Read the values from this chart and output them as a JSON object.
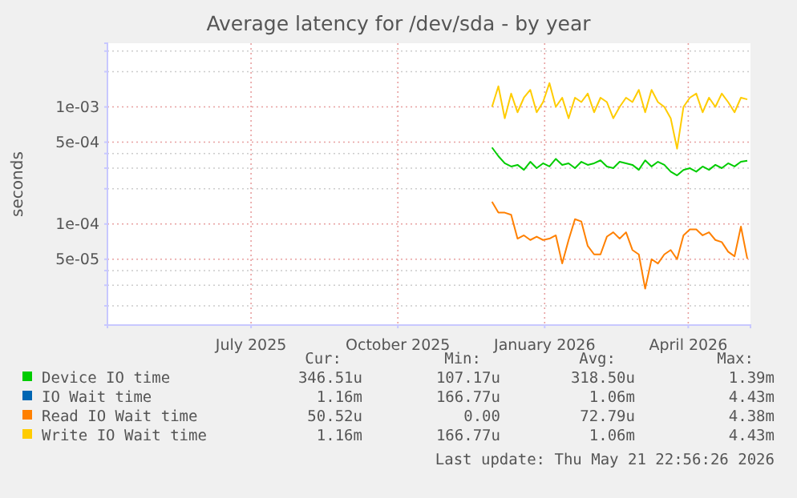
{
  "chart_data": {
    "type": "line",
    "title": "Average latency for /dev/sda - by year",
    "ylabel": "seconds",
    "log": "y",
    "grid": true,
    "legend": "bottom",
    "marker": "none",
    "line_style": "solid",
    "xlim": [
      "2025-04-17",
      "2026-05-25"
    ],
    "xticks": [
      {
        "value": "2025-07-16",
        "label": "July 2025"
      },
      {
        "value": "2025-10-16",
        "label": "October 2025"
      },
      {
        "value": "2026-01-16",
        "label": "January 2026"
      },
      {
        "value": "2026-04-16",
        "label": "April 2026"
      }
    ],
    "ylim": [
      1.37e-05,
      0.0035
    ],
    "yticks": [
      {
        "value": 2e-05,
        "label": null
      },
      {
        "value": 3e-05,
        "label": null
      },
      {
        "value": 4e-05,
        "label": null
      },
      {
        "value": 5e-05,
        "label": "5e-05"
      },
      {
        "value": 0.0001,
        "label": "1e-04"
      },
      {
        "value": 0.0002,
        "label": null
      },
      {
        "value": 0.0003,
        "label": null
      },
      {
        "value": 0.0004,
        "label": null
      },
      {
        "value": 0.0005,
        "label": "5e-04"
      },
      {
        "value": 0.001,
        "label": "1e-03"
      },
      {
        "value": 0.002,
        "label": null
      },
      {
        "value": 0.003,
        "label": null
      }
    ],
    "x": [
      "2025-12-14",
      "2025-12-18",
      "2025-12-22",
      "2025-12-26",
      "2025-12-30",
      "2026-01-03",
      "2026-01-07",
      "2026-01-11",
      "2026-01-15",
      "2026-01-19",
      "2026-01-23",
      "2026-01-27",
      "2026-01-31",
      "2026-02-04",
      "2026-02-08",
      "2026-02-12",
      "2026-02-16",
      "2026-02-20",
      "2026-02-24",
      "2026-02-28",
      "2026-03-04",
      "2026-03-08",
      "2026-03-12",
      "2026-03-16",
      "2026-03-20",
      "2026-03-24",
      "2026-03-28",
      "2026-04-01",
      "2026-04-05",
      "2026-04-09",
      "2026-04-13",
      "2026-04-17",
      "2026-04-21",
      "2026-04-25",
      "2026-04-29",
      "2026-05-03",
      "2026-05-07",
      "2026-05-11",
      "2026-05-15",
      "2026-05-19",
      "2026-05-23"
    ],
    "series": [
      {
        "name": "Device IO time",
        "color": "#00cc00",
        "values": [
          0.00045,
          0.00038,
          0.00033,
          0.00031,
          0.00032,
          0.00029,
          0.00034,
          0.0003,
          0.00033,
          0.00031,
          0.00036,
          0.00032,
          0.00033,
          0.0003,
          0.00034,
          0.00032,
          0.00033,
          0.00035,
          0.00031,
          0.0003,
          0.00034,
          0.00033,
          0.00032,
          0.00029,
          0.00035,
          0.00031,
          0.00034,
          0.00032,
          0.00028,
          0.00026,
          0.00029,
          0.0003,
          0.00028,
          0.00031,
          0.00029,
          0.00032,
          0.0003,
          0.00033,
          0.00031,
          0.00034,
          0.000347
        ]
      },
      {
        "name": "IO Wait time",
        "color": "#0066b3",
        "values": [
          null,
          null,
          null,
          null,
          null,
          null,
          null,
          null,
          null,
          null,
          null,
          null,
          null,
          null,
          null,
          null,
          null,
          null,
          null,
          null,
          null,
          null,
          null,
          null,
          null,
          null,
          null,
          null,
          null,
          null,
          null,
          null,
          null,
          null,
          null,
          null,
          null,
          null,
          null,
          null,
          null
        ]
      },
      {
        "name": "Read IO Wait time",
        "color": "#ff8000",
        "values": [
          0.000155,
          0.000125,
          0.000125,
          0.00012,
          7.5e-05,
          8e-05,
          7.3e-05,
          7.8e-05,
          7.3e-05,
          7.5e-05,
          8e-05,
          4.6e-05,
          7.3e-05,
          0.00011,
          0.000105,
          6.5e-05,
          5.5e-05,
          5.5e-05,
          7.8e-05,
          8.5e-05,
          7.5e-05,
          8.5e-05,
          6e-05,
          5.5e-05,
          2.8e-05,
          5e-05,
          4.6e-05,
          5.5e-05,
          6e-05,
          5e-05,
          8e-05,
          9e-05,
          9e-05,
          8e-05,
          8.5e-05,
          7.3e-05,
          7e-05,
          5.8e-05,
          5.3e-05,
          9.5e-05,
          5.05e-05
        ]
      },
      {
        "name": "Write IO Wait time",
        "color": "#ffcc00",
        "values": [
          0.001,
          0.0015,
          0.0008,
          0.0013,
          0.0009,
          0.0012,
          0.0014,
          0.0009,
          0.0011,
          0.0016,
          0.001,
          0.0012,
          0.0008,
          0.0012,
          0.0011,
          0.0013,
          0.0009,
          0.0012,
          0.0011,
          0.0008,
          0.001,
          0.0012,
          0.0011,
          0.0014,
          0.0009,
          0.0014,
          0.0011,
          0.001,
          0.0008,
          0.00044,
          0.001,
          0.0012,
          0.0013,
          0.0009,
          0.0012,
          0.001,
          0.0013,
          0.0011,
          0.0009,
          0.0012,
          0.00116
        ]
      }
    ],
    "annotations": [
      "Cur:",
      "Min:",
      "Avg:",
      "Max:",
      "346.51u",
      "107.17u",
      "318.50u",
      "1.39m",
      "1.16m",
      "166.77u",
      "1.06m",
      "4.43m",
      "50.52u",
      "0.00",
      "72.79u",
      "4.38m",
      "1.16m",
      "166.77u",
      "1.06m",
      "4.43m",
      "Last update: Thu May 21 22:56:26 2026"
    ]
  }
}
